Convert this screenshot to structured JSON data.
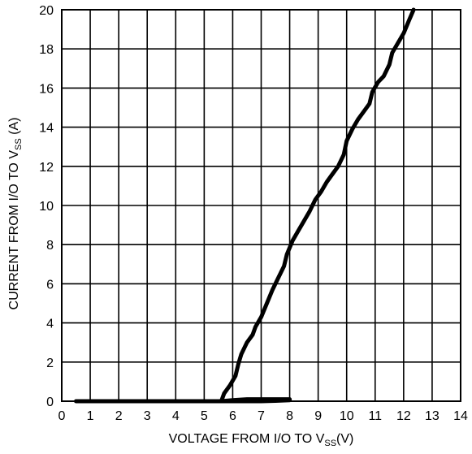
{
  "chart_data": {
    "type": "line",
    "xlabel": {
      "main": "VOLTAGE FROM I/O TO V",
      "sub": "SS",
      "unit": "(V)"
    },
    "ylabel": {
      "main": "CURRENT FROM  I/O TO V",
      "sub": "SS",
      "unit": " (A)"
    },
    "xlim": [
      0,
      14
    ],
    "ylim": [
      0,
      20
    ],
    "x_ticks": [
      0,
      1,
      2,
      3,
      4,
      5,
      6,
      7,
      8,
      9,
      10,
      11,
      12,
      13,
      14
    ],
    "y_ticks": [
      0,
      2,
      4,
      6,
      8,
      10,
      12,
      14,
      16,
      18,
      20
    ],
    "grid": true,
    "series": [
      {
        "x": [
          0.5,
          1,
          2,
          3,
          4,
          5,
          5.6,
          6,
          6.5,
          7,
          7.5,
          8,
          8,
          7.5,
          7,
          6.5,
          6,
          5.7
        ],
        "y": [
          0,
          0,
          0,
          0,
          0,
          0,
          0,
          0.05,
          0.1,
          0.1,
          0.1,
          0.1,
          0.05,
          0.02,
          0,
          0,
          0,
          0
        ]
      },
      {
        "x": [
          5.6,
          5.7,
          5.9,
          6.1,
          6.2,
          6.3,
          6.5,
          6.7,
          6.8,
          7.0,
          7.2,
          7.4,
          7.6,
          7.8,
          7.9,
          8.1,
          8.3,
          8.5,
          8.7,
          8.9,
          9.1,
          9.3,
          9.5,
          9.7,
          9.9,
          10.0,
          10.2,
          10.4,
          10.6,
          10.8,
          10.9,
          11.1,
          11.3,
          11.5,
          11.6,
          11.8,
          12.0,
          12.2,
          12.35
        ],
        "y": [
          0,
          0.4,
          0.8,
          1.3,
          1.9,
          2.4,
          3.0,
          3.4,
          3.8,
          4.3,
          5.0,
          5.7,
          6.3,
          6.9,
          7.5,
          8.2,
          8.7,
          9.2,
          9.7,
          10.3,
          10.7,
          11.2,
          11.6,
          12.0,
          12.6,
          13.3,
          13.9,
          14.4,
          14.8,
          15.2,
          15.8,
          16.3,
          16.6,
          17.2,
          17.8,
          18.3,
          18.8,
          19.5,
          20.0
        ]
      }
    ]
  }
}
